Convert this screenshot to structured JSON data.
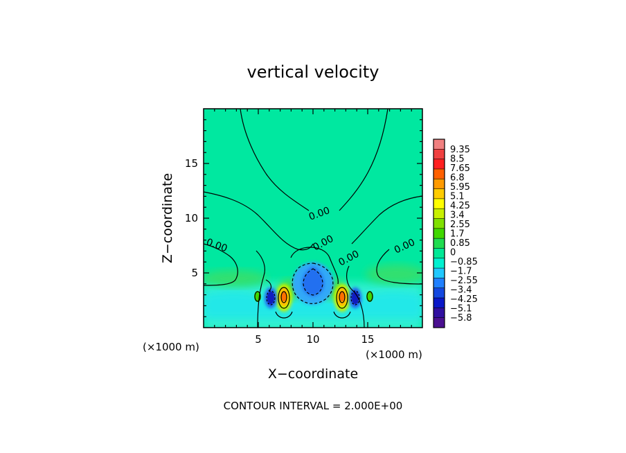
{
  "chart_data": {
    "type": "heatmap",
    "title": "vertical velocity",
    "xlabel": "X−coordinate",
    "ylabel": "Z−coordinate",
    "x_unit": "(×1000 m)",
    "y_unit": "(×1000 m)",
    "xlim": [
      0,
      20
    ],
    "ylim": [
      0,
      20
    ],
    "x_ticks": [
      "5",
      "10",
      "15"
    ],
    "y_ticks": [
      "5",
      "10",
      "15"
    ],
    "colorbar": {
      "levels": [
        "9.35",
        "8.5",
        "7.65",
        "6.8",
        "5.95",
        "5.1",
        "4.25",
        "3.4",
        "2.55",
        "1.7",
        "0.85",
        "0",
        "−0.85",
        "−1.7",
        "−2.55",
        "−3.4",
        "−4.25",
        "−5.1",
        "−5.8"
      ],
      "colors": [
        "#f08080",
        "#f04040",
        "#ff2020",
        "#ff6000",
        "#ff9a00",
        "#ffcc00",
        "#ffff00",
        "#c8f000",
        "#80e000",
        "#40d800",
        "#20dc50",
        "#00e896",
        "#00f0d0",
        "#20c8ff",
        "#2080ff",
        "#1448e0",
        "#0a18c8",
        "#3010a0",
        "#4a1090"
      ]
    },
    "contour_labels": [
      "0.00",
      "0.00",
      "0.00",
      "0.00",
      "0.00"
    ],
    "footer": "CONTOUR INTERVAL = 2.000E+00"
  }
}
